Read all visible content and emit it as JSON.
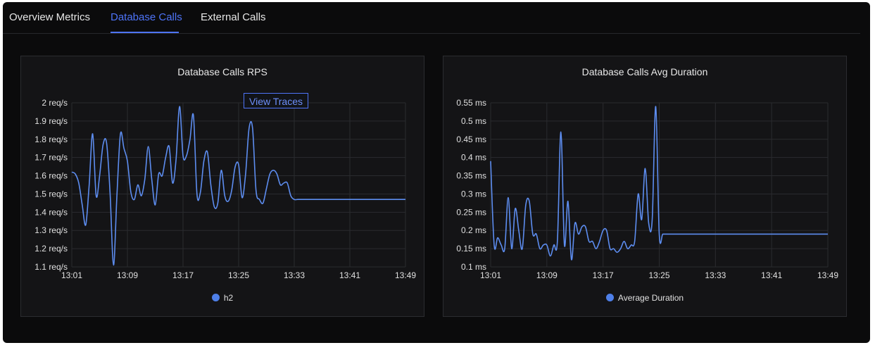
{
  "tabs": [
    {
      "label": "Overview Metrics",
      "active": false
    },
    {
      "label": "Database Calls",
      "active": true
    },
    {
      "label": "External Calls",
      "active": false
    }
  ],
  "colors": {
    "accent": "#4e74f8",
    "line": "#5d8df0",
    "grid": "#2a2b2f",
    "text": "#e0e0e0"
  },
  "rps_panel": {
    "view_traces_label": "View Traces"
  },
  "chart_data": [
    {
      "type": "line",
      "title": "Database Calls RPS",
      "x_ticks": [
        "13:01",
        "13:09",
        "13:17",
        "13:25",
        "13:33",
        "13:41",
        "13:49"
      ],
      "y_ticks": [
        "2 req/s",
        "1.9 req/s",
        "1.8 req/s",
        "1.7 req/s",
        "1.6 req/s",
        "1.5 req/s",
        "1.4 req/s",
        "1.3 req/s",
        "1.2 req/s",
        "1.1 req/s"
      ],
      "ylim": [
        1.1,
        2.0
      ],
      "x_range_minutes": [
        0,
        48
      ],
      "legend": "bottom",
      "grid": true,
      "series": [
        {
          "name": "h2",
          "x": [
            0,
            0.5,
            1,
            1.5,
            2,
            2.5,
            3,
            3.5,
            4,
            4.5,
            5,
            5.5,
            6,
            6.5,
            7,
            7.5,
            8,
            8.5,
            9,
            9.5,
            10,
            10.5,
            11,
            11.5,
            12,
            12.5,
            13,
            13.5,
            14,
            14.5,
            15,
            15.5,
            16,
            16.5,
            17,
            17.5,
            18,
            18.5,
            19,
            19.5,
            20,
            20.5,
            21,
            21.5,
            22,
            22.5,
            23,
            23.5,
            24,
            24.5,
            25,
            25.5,
            26,
            26.5,
            27,
            27.5,
            28,
            28.5,
            29,
            29.5,
            30,
            30.5,
            31,
            31.5,
            32,
            32.5,
            33,
            33.5,
            34,
            34.5,
            35,
            35.5,
            36,
            36.5,
            37,
            37.5,
            38,
            38.5,
            39,
            39.5,
            40,
            40.5,
            41,
            41.5,
            42,
            42.5,
            43,
            43.5,
            44,
            44.5,
            45,
            45.5,
            46,
            46.5,
            47,
            47.5,
            48
          ],
          "values": [
            1.62,
            1.61,
            1.56,
            1.44,
            1.33,
            1.55,
            1.83,
            1.49,
            1.6,
            1.77,
            1.78,
            1.51,
            1.11,
            1.5,
            1.83,
            1.75,
            1.68,
            1.51,
            1.47,
            1.55,
            1.49,
            1.58,
            1.76,
            1.58,
            1.44,
            1.61,
            1.6,
            1.7,
            1.76,
            1.56,
            1.69,
            1.98,
            1.71,
            1.71,
            1.8,
            1.93,
            1.5,
            1.51,
            1.68,
            1.73,
            1.55,
            1.43,
            1.45,
            1.63,
            1.49,
            1.46,
            1.52,
            1.65,
            1.66,
            1.48,
            1.61,
            1.86,
            1.86,
            1.52,
            1.47,
            1.45,
            1.53,
            1.61,
            1.63,
            1.61,
            1.55,
            1.56,
            1.56,
            1.49,
            1.47,
            1.47,
            1.47,
            1.47,
            1.47,
            1.47,
            1.47,
            1.47,
            1.47,
            1.47,
            1.47,
            1.47,
            1.47,
            1.47,
            1.47,
            1.47,
            1.47,
            1.47,
            1.47,
            1.47,
            1.47,
            1.47,
            1.47,
            1.47,
            1.47,
            1.47,
            1.47,
            1.47,
            1.47,
            1.47,
            1.47,
            1.47,
            1.47
          ]
        }
      ]
    },
    {
      "type": "line",
      "title": "Database Calls Avg Duration",
      "x_ticks": [
        "13:01",
        "13:09",
        "13:17",
        "13:25",
        "13:33",
        "13:41",
        "13:49"
      ],
      "y_ticks": [
        "0.55 ms",
        "0.5 ms",
        "0.45 ms",
        "0.4 ms",
        "0.35 ms",
        "0.3 ms",
        "0.25 ms",
        "0.2 ms",
        "0.15 ms",
        "0.1 ms"
      ],
      "ylim": [
        0.1,
        0.55
      ],
      "x_range_minutes": [
        0,
        48
      ],
      "legend": "bottom",
      "grid": true,
      "series": [
        {
          "name": "Average Duration",
          "x": [
            0,
            0.5,
            1,
            1.5,
            2,
            2.5,
            3,
            3.5,
            4,
            4.5,
            5,
            5.5,
            6,
            6.5,
            7,
            7.5,
            8,
            8.5,
            9,
            9.5,
            10,
            10.5,
            11,
            11.5,
            12,
            12.5,
            13,
            13.5,
            14,
            14.5,
            15,
            15.5,
            16,
            16.5,
            17,
            17.5,
            18,
            18.5,
            19,
            19.5,
            20,
            20.5,
            21,
            21.5,
            22,
            22.5,
            23,
            23.5,
            24,
            24.5,
            25,
            25.5,
            26,
            26.5,
            27,
            27.5,
            28,
            28.5,
            29,
            29.5,
            30,
            30.5,
            31,
            31.5,
            32,
            32.5,
            33,
            33.5,
            34,
            34.5,
            35,
            35.5,
            36,
            36.5,
            37,
            37.5,
            38,
            38.5,
            39,
            39.5,
            40,
            40.5,
            41,
            41.5,
            42,
            42.5,
            43,
            43.5,
            44,
            44.5,
            45,
            45.5,
            46,
            46.5,
            47,
            47.5,
            48
          ],
          "values": [
            0.39,
            0.16,
            0.18,
            0.16,
            0.15,
            0.29,
            0.15,
            0.26,
            0.2,
            0.15,
            0.27,
            0.28,
            0.19,
            0.19,
            0.15,
            0.16,
            0.16,
            0.13,
            0.16,
            0.17,
            0.47,
            0.16,
            0.28,
            0.12,
            0.22,
            0.19,
            0.21,
            0.21,
            0.17,
            0.17,
            0.15,
            0.17,
            0.2,
            0.2,
            0.15,
            0.15,
            0.14,
            0.15,
            0.17,
            0.15,
            0.16,
            0.17,
            0.3,
            0.23,
            0.37,
            0.22,
            0.23,
            0.54,
            0.19,
            0.19,
            0.19,
            0.19,
            0.19,
            0.19,
            0.19,
            0.19,
            0.19,
            0.19,
            0.19,
            0.19,
            0.19,
            0.19,
            0.19,
            0.19,
            0.19,
            0.19,
            0.19,
            0.19,
            0.19,
            0.19,
            0.19,
            0.19,
            0.19,
            0.19,
            0.19,
            0.19,
            0.19,
            0.19,
            0.19,
            0.19,
            0.19,
            0.19,
            0.19,
            0.19,
            0.19,
            0.19,
            0.19,
            0.19,
            0.19,
            0.19,
            0.19,
            0.19,
            0.19,
            0.19,
            0.19,
            0.19,
            0.19
          ]
        }
      ]
    }
  ]
}
